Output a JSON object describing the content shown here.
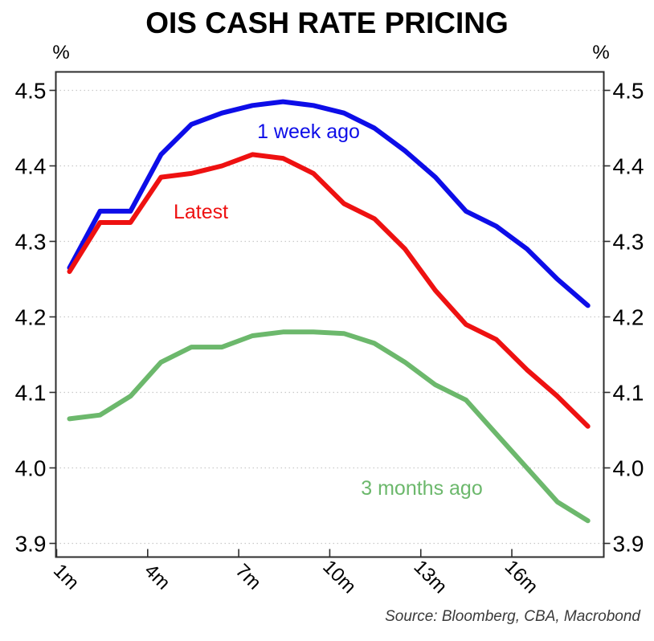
{
  "title": "OIS CASH RATE PRICING",
  "axis_unit_left": "%",
  "axis_unit_right": "%",
  "source": "Source: Bloomberg, CBA, Macrobond",
  "colors": {
    "blue": "#0d0de8",
    "red": "#ee1111",
    "green": "#6cb86c",
    "grid": "#c9c9c9",
    "axis": "#2e2e2e",
    "text": "#000000",
    "source_text": "#3a3a3a"
  },
  "chart_data": {
    "type": "line",
    "title": "OIS CASH RATE PRICING",
    "xlabel": "",
    "ylabel": "%",
    "x": [
      1,
      2,
      3,
      4,
      5,
      6,
      7,
      8,
      9,
      10,
      11,
      12,
      13,
      14,
      15,
      16,
      17,
      18
    ],
    "x_tick_labels": [
      "1m",
      "4m",
      "7m",
      "10m",
      "13m",
      "16m"
    ],
    "x_tick_positions": [
      1,
      4,
      7,
      10,
      13,
      16
    ],
    "y_ticks": [
      3.9,
      4.0,
      4.1,
      4.2,
      4.3,
      4.4,
      4.5
    ],
    "y_tick_labels": [
      "3.9",
      "4.0",
      "4.1",
      "4.2",
      "4.3",
      "4.4",
      "4.5"
    ],
    "ylim": [
      3.88,
      4.525
    ],
    "grid": "horizontal dotted",
    "legend_position": "inline labels on lines",
    "series": [
      {
        "name": "1 week ago",
        "color": "#0d0de8",
        "values": [
          4.265,
          4.34,
          4.34,
          4.415,
          4.455,
          4.47,
          4.48,
          4.485,
          4.48,
          4.47,
          4.45,
          4.42,
          4.385,
          4.34,
          4.32,
          4.29,
          4.25,
          4.215
        ]
      },
      {
        "name": "Latest",
        "color": "#ee1111",
        "values": [
          4.26,
          4.325,
          4.325,
          4.385,
          4.39,
          4.4,
          4.415,
          4.41,
          4.39,
          4.35,
          4.33,
          4.29,
          4.235,
          4.19,
          4.17,
          4.13,
          4.095,
          4.055
        ]
      },
      {
        "name": "3 months ago",
        "color": "#6cb86c",
        "values": [
          4.065,
          4.07,
          4.095,
          4.14,
          4.16,
          4.16,
          4.175,
          4.18,
          4.18,
          4.178,
          4.165,
          4.14,
          4.11,
          4.09,
          4.045,
          4.0,
          3.955,
          3.93
        ]
      }
    ]
  }
}
